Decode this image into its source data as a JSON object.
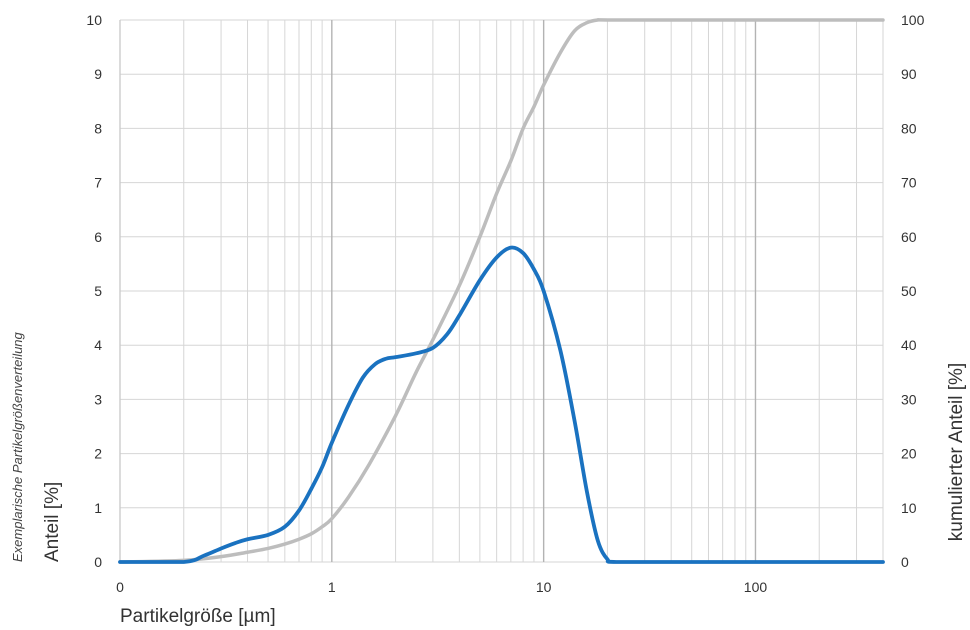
{
  "chart_data": {
    "type": "line",
    "title": "",
    "side_note": "Exemplarische Partikelgrößenverteilung",
    "xlabel": "Partikelgröße [µm]",
    "ylabel_left": "Anteil [%]",
    "ylabel_right": "kumulierter Anteil [%]",
    "x_scale": "log",
    "xlim": [
      0.1,
      400
    ],
    "ylim_left": [
      0,
      10
    ],
    "ylim_right": [
      0,
      100
    ],
    "x_tick_values": [
      0.1,
      1,
      10,
      100
    ],
    "x_tick_labels": [
      "0",
      "1",
      "10",
      "100"
    ],
    "y_left_ticks": [
      "0",
      "1",
      "2",
      "3",
      "4",
      "5",
      "6",
      "7",
      "8",
      "9",
      "10"
    ],
    "y_right_ticks": [
      "0",
      "10",
      "20",
      "30",
      "40",
      "50",
      "60",
      "70",
      "80",
      "90",
      "100"
    ],
    "grid": true,
    "colors": {
      "density": "#1a72c0",
      "cumulative": "#bdbdbd",
      "grid_minor": "#d6d6d6",
      "grid_major": "#b3b3b3"
    },
    "series": [
      {
        "axis": "left",
        "color": "#1a72c0",
        "x": [
          0.1,
          0.2,
          0.25,
          0.3,
          0.35,
          0.4,
          0.5,
          0.6,
          0.7,
          0.8,
          0.9,
          1.0,
          1.2,
          1.4,
          1.6,
          1.8,
          2.0,
          2.5,
          3.0,
          3.5,
          4.0,
          5.0,
          6.0,
          7.0,
          8.0,
          9.0,
          10.0,
          12.0,
          14.0,
          16.0,
          18.0,
          20.0,
          22.0,
          50.0,
          100.0,
          400.0
        ],
        "y": [
          0,
          0,
          0.12,
          0.25,
          0.35,
          0.42,
          0.5,
          0.65,
          0.95,
          1.35,
          1.75,
          2.2,
          2.9,
          3.4,
          3.65,
          3.75,
          3.78,
          3.85,
          3.95,
          4.2,
          4.55,
          5.2,
          5.62,
          5.8,
          5.7,
          5.4,
          5.0,
          3.9,
          2.6,
          1.3,
          0.4,
          0.05,
          0,
          0,
          0,
          0
        ]
      },
      {
        "axis": "right",
        "color": "#bdbdbd",
        "x": [
          0.1,
          0.2,
          0.3,
          0.4,
          0.5,
          0.6,
          0.7,
          0.8,
          0.9,
          1.0,
          1.2,
          1.5,
          2.0,
          2.5,
          3.0,
          4.0,
          5.0,
          6.0,
          7.0,
          8.0,
          9.0,
          10.0,
          12.0,
          14.0,
          16.0,
          18.0,
          20.0,
          50.0,
          100.0,
          400.0
        ],
        "y": [
          0,
          0.3,
          1,
          1.8,
          2.5,
          3.3,
          4.2,
          5.2,
          6.5,
          8,
          12,
          18,
          27,
          35,
          41,
          51,
          60,
          68,
          74,
          80,
          84,
          88,
          94,
          98,
          99.5,
          100,
          100,
          100,
          100,
          100
        ]
      }
    ]
  }
}
